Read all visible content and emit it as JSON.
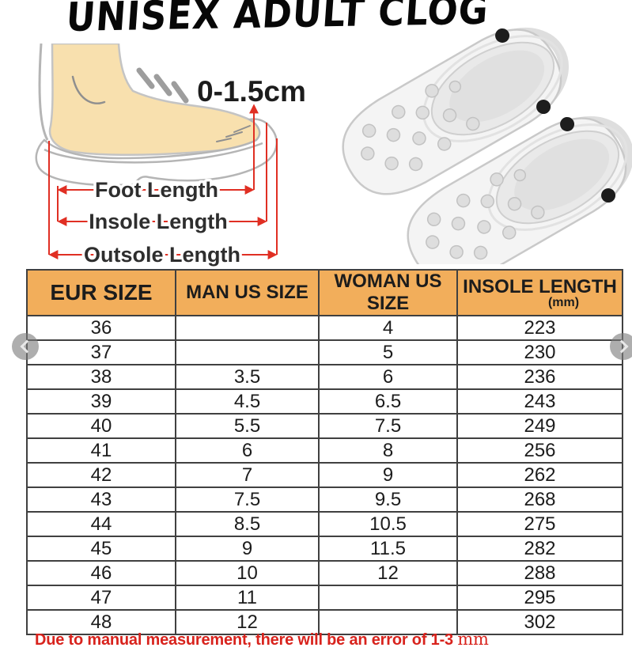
{
  "title": "UNISEX ADULT CLOG",
  "diagram": {
    "gap_label": "0-1.5cm",
    "measurements": [
      "Foot Length",
      "Insole Length",
      "Outsole Length"
    ]
  },
  "table": {
    "headers": [
      "EUR SIZE",
      "MAN US SIZE",
      "WOMAN US SIZE",
      "INSOLE LENGTH"
    ],
    "insole_unit": "(mm)",
    "rows": [
      {
        "eur": "36",
        "man": "",
        "woman": "4",
        "insole": "223"
      },
      {
        "eur": "37",
        "man": "",
        "woman": "5",
        "insole": "230"
      },
      {
        "eur": "38",
        "man": "3.5",
        "woman": "6",
        "insole": "236"
      },
      {
        "eur": "39",
        "man": "4.5",
        "woman": "6.5",
        "insole": "243"
      },
      {
        "eur": "40",
        "man": "5.5",
        "woman": "7.5",
        "insole": "249"
      },
      {
        "eur": "41",
        "man": "6",
        "woman": "8",
        "insole": "256"
      },
      {
        "eur": "42",
        "man": "7",
        "woman": "9",
        "insole": "262"
      },
      {
        "eur": "43",
        "man": "7.5",
        "woman": "9.5",
        "insole": "268"
      },
      {
        "eur": "44",
        "man": "8.5",
        "woman": "10.5",
        "insole": "275"
      },
      {
        "eur": "45",
        "man": "9",
        "woman": "11.5",
        "insole": "282"
      },
      {
        "eur": "46",
        "man": "10",
        "woman": "12",
        "insole": "288"
      },
      {
        "eur": "47",
        "man": "11",
        "woman": "",
        "insole": "295"
      },
      {
        "eur": "48",
        "man": "12",
        "woman": "",
        "insole": "302"
      }
    ]
  },
  "footnote": {
    "text": "Due to manual measurement, there will be an error of 1-3 ",
    "unit": "mm"
  },
  "carousel": {
    "prev_icon": "chevron-left",
    "next_icon": "chevron-right"
  },
  "colors": {
    "header_bg": "#f2ae5b",
    "table_border": "#404040",
    "note_red": "#d8231d",
    "measure_red": "#e02f23",
    "foot_skin": "#f8e0ae",
    "shoe_outline": "#b5b5b5",
    "clog_body": "#f4f4f4"
  }
}
